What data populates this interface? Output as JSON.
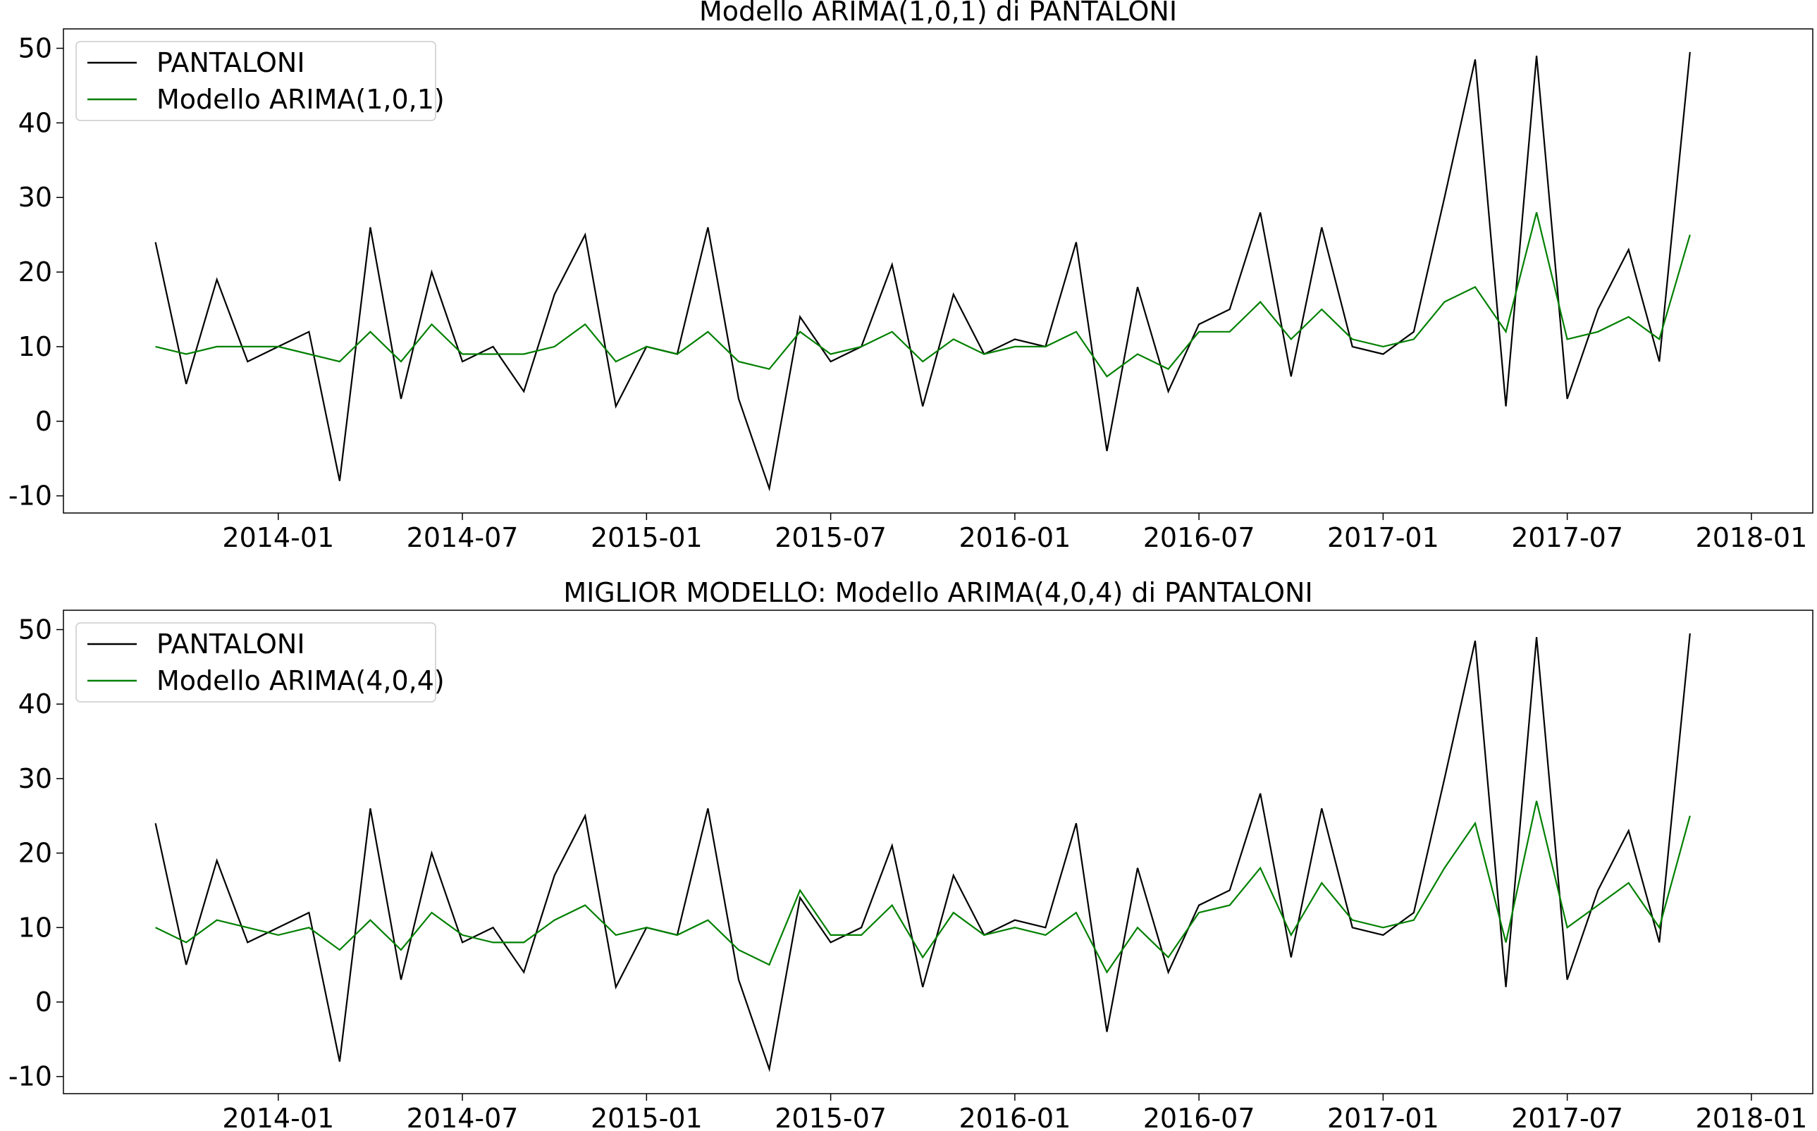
{
  "chart_data": [
    {
      "type": "line",
      "title": "Modello ARIMA(1,0,1) di PANTALONI",
      "legend": "upper left",
      "x": [
        "2013-09",
        "2013-10",
        "2013-11",
        "2013-12",
        "2014-01",
        "2014-02",
        "2014-03",
        "2014-04",
        "2014-05",
        "2014-06",
        "2014-07",
        "2014-08",
        "2014-09",
        "2014-10",
        "2014-11",
        "2014-12",
        "2015-01",
        "2015-02",
        "2015-03",
        "2015-04",
        "2015-05",
        "2015-06",
        "2015-07",
        "2015-08",
        "2015-09",
        "2015-10",
        "2015-11",
        "2015-12",
        "2016-01",
        "2016-02",
        "2016-03",
        "2016-04",
        "2016-05",
        "2016-06",
        "2016-07",
        "2016-08",
        "2016-09",
        "2016-10",
        "2016-11",
        "2016-12",
        "2017-01",
        "2017-02",
        "2017-03",
        "2017-04",
        "2017-05",
        "2017-06",
        "2017-07",
        "2017-08",
        "2017-09",
        "2017-10",
        "2017-11"
      ],
      "series": [
        {
          "name": "PANTALONI",
          "color": "#000000",
          "values": [
            24,
            5,
            19,
            8,
            10,
            12,
            -8,
            26,
            3,
            20,
            8,
            10,
            4,
            17,
            25,
            2,
            10,
            9,
            26,
            3,
            -9,
            14,
            8,
            10,
            21,
            2,
            17,
            9,
            11,
            10,
            24,
            -4,
            18,
            4,
            13,
            15,
            28,
            6,
            26,
            10,
            9,
            12,
            30,
            48.5,
            2,
            49,
            3,
            15,
            23,
            8,
            49.5
          ]
        },
        {
          "name": "Modello ARIMA(1,0,1)",
          "color": "#008000",
          "values": [
            10,
            9,
            10,
            10,
            10,
            9,
            8,
            12,
            8,
            13,
            9,
            9,
            9,
            10,
            13,
            8,
            10,
            9,
            12,
            8,
            7,
            12,
            9,
            10,
            12,
            8,
            11,
            9,
            10,
            10,
            12,
            6,
            9,
            7,
            12,
            12,
            16,
            11,
            15,
            11,
            10,
            11,
            16,
            18,
            12,
            28,
            11,
            12,
            14,
            11,
            25
          ]
        }
      ],
      "xlim": [
        "2013-06",
        "2018-03"
      ],
      "xticks": [
        "2014-01",
        "2014-07",
        "2015-01",
        "2015-07",
        "2016-01",
        "2016-07",
        "2017-01",
        "2017-07",
        "2018-01"
      ],
      "ylim": [
        -12.3,
        52.6
      ],
      "yticks": [
        -10,
        0,
        10,
        20,
        30,
        40,
        50
      ]
    },
    {
      "type": "line",
      "title": "MIGLIOR MODELLO: Modello ARIMA(4,0,4) di PANTALONI",
      "legend": "upper left",
      "x": [
        "2013-09",
        "2013-10",
        "2013-11",
        "2013-12",
        "2014-01",
        "2014-02",
        "2014-03",
        "2014-04",
        "2014-05",
        "2014-06",
        "2014-07",
        "2014-08",
        "2014-09",
        "2014-10",
        "2014-11",
        "2014-12",
        "2015-01",
        "2015-02",
        "2015-03",
        "2015-04",
        "2015-05",
        "2015-06",
        "2015-07",
        "2015-08",
        "2015-09",
        "2015-10",
        "2015-11",
        "2015-12",
        "2016-01",
        "2016-02",
        "2016-03",
        "2016-04",
        "2016-05",
        "2016-06",
        "2016-07",
        "2016-08",
        "2016-09",
        "2016-10",
        "2016-11",
        "2016-12",
        "2017-01",
        "2017-02",
        "2017-03",
        "2017-04",
        "2017-05",
        "2017-06",
        "2017-07",
        "2017-08",
        "2017-09",
        "2017-10",
        "2017-11"
      ],
      "series": [
        {
          "name": "PANTALONI",
          "color": "#000000",
          "values": [
            24,
            5,
            19,
            8,
            10,
            12,
            -8,
            26,
            3,
            20,
            8,
            10,
            4,
            17,
            25,
            2,
            10,
            9,
            26,
            3,
            -9,
            14,
            8,
            10,
            21,
            2,
            17,
            9,
            11,
            10,
            24,
            -4,
            18,
            4,
            13,
            15,
            28,
            6,
            26,
            10,
            9,
            12,
            30,
            48.5,
            2,
            49,
            3,
            15,
            23,
            8,
            49.5
          ]
        },
        {
          "name": "Modello ARIMA(4,0,4)",
          "color": "#008000",
          "values": [
            10,
            8,
            11,
            10,
            9,
            10,
            7,
            11,
            7,
            12,
            9,
            8,
            8,
            11,
            13,
            9,
            10,
            9,
            11,
            7,
            5,
            15,
            9,
            9,
            13,
            6,
            12,
            9,
            10,
            9,
            12,
            4,
            10,
            6,
            12,
            13,
            18,
            9,
            16,
            11,
            10,
            11,
            18,
            24,
            8,
            27,
            10,
            13,
            16,
            10,
            25
          ]
        }
      ],
      "xlim": [
        "2013-06",
        "2018-03"
      ],
      "xticks": [
        "2014-01",
        "2014-07",
        "2015-01",
        "2015-07",
        "2016-01",
        "2016-07",
        "2017-01",
        "2017-07",
        "2018-01"
      ],
      "ylim": [
        -12.3,
        52.6
      ],
      "yticks": [
        -10,
        0,
        10,
        20,
        30,
        40,
        50
      ]
    }
  ]
}
